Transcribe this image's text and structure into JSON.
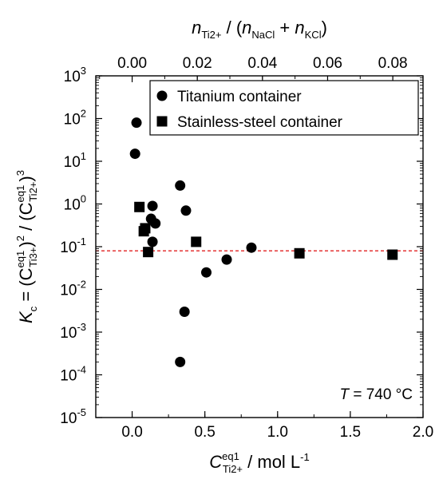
{
  "chart_data": {
    "type": "scatter",
    "xlabel": {
      "main": "C",
      "sup": "eq1",
      "sub": "Ti2+",
      "unit": " / mol L",
      "unit_sup": "-1"
    },
    "ylabel": {
      "prefix": "K",
      "prefix_sub": "c",
      "eq": " = (C",
      "sup1": "eq1",
      "sub1": "Ti3+",
      "mid": ")",
      "pow1": "2",
      "div": " / (C",
      "sup2": "eq1",
      "sub2": "Ti2+",
      "end": ")",
      "pow2": "3"
    },
    "top_xlabel": {
      "n": "n",
      "sub_ti": "Ti2+",
      "mid": " / (",
      "n2": "n",
      "sub_nacl": "NaCl",
      "plus": " + ",
      "n3": "n",
      "sub_kcl": "KCl",
      "end": ")"
    },
    "xlim": [
      -0.25,
      2.0
    ],
    "ylim_log10": [
      -5,
      3
    ],
    "x_ticks": [
      "0.0",
      "0.5",
      "1.0",
      "1.5",
      "2.0"
    ],
    "x_tick_values": [
      0.0,
      0.5,
      1.0,
      1.5,
      2.0
    ],
    "top_ticks": [
      "0.00",
      "0.02",
      "0.04",
      "0.06",
      "0.08"
    ],
    "top_tick_values": [
      0.0,
      0.02,
      0.04,
      0.06,
      0.08
    ],
    "top_scale": 22.4,
    "y_exponents": [
      "3",
      "2",
      "1",
      "0",
      "-1",
      "-2",
      "-3",
      "-4",
      "-5"
    ],
    "y_exponent_values": [
      3,
      2,
      1,
      0,
      -1,
      -2,
      -3,
      -4,
      -5
    ],
    "y_tick_base": "10",
    "reference_line": {
      "y": 0.08,
      "color": "#e02020",
      "style": "dashed"
    },
    "series": [
      {
        "name": "Titanium container",
        "marker": "circle",
        "color": "#000000",
        "points": [
          [
            0.03,
            80
          ],
          [
            0.02,
            15
          ],
          [
            0.14,
            0.9
          ],
          [
            0.13,
            0.45
          ],
          [
            0.16,
            0.35
          ],
          [
            0.14,
            0.13
          ],
          [
            0.33,
            2.7
          ],
          [
            0.37,
            0.7
          ],
          [
            0.36,
            0.003
          ],
          [
            0.33,
            0.0002
          ],
          [
            0.51,
            0.025
          ],
          [
            0.65,
            0.05
          ],
          [
            0.82,
            0.095
          ]
        ]
      },
      {
        "name": "Stainless-steel container",
        "marker": "square",
        "color": "#000000",
        "points": [
          [
            0.05,
            0.85
          ],
          [
            0.08,
            0.23
          ],
          [
            0.09,
            0.27
          ],
          [
            0.11,
            0.075
          ],
          [
            0.44,
            0.13
          ],
          [
            1.15,
            0.07
          ],
          [
            1.79,
            0.065
          ]
        ]
      }
    ],
    "annotation": {
      "symbol": "T",
      "text": " = 740 °C"
    },
    "legend_position": "top-right",
    "grid": false
  }
}
